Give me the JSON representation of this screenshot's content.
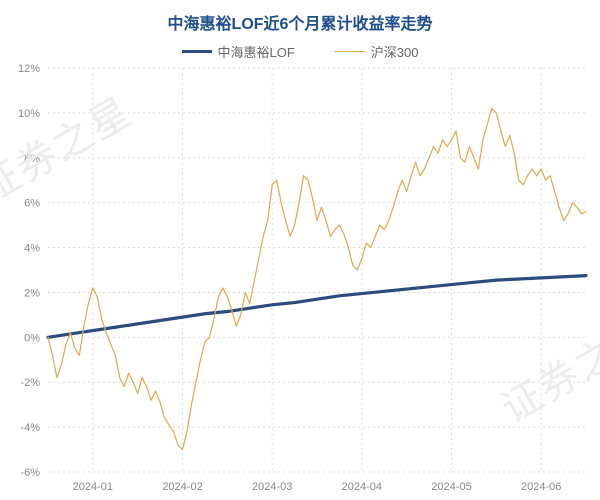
{
  "title": {
    "text": "中海惠裕LOF近6个月累计收益率走势",
    "color": "#1f4e8c",
    "fontsize": 16
  },
  "legend": {
    "items": [
      {
        "label": "中海惠裕LOF",
        "color": "#2b4c7e",
        "width": 3
      },
      {
        "label": "沪深300",
        "color": "#e0a94f",
        "width": 1
      }
    ],
    "fontsize": 13,
    "text_color": "#666666"
  },
  "watermark": {
    "text": "证券之星",
    "color": "#ececec",
    "fontsize": 40
  },
  "chart": {
    "type": "line",
    "background_color": "#ffffff",
    "grid_color": "#dddddd",
    "grid_dash": "2,3",
    "axis_font_color": "#888888",
    "axis_fontsize": 11,
    "y": {
      "min": -6,
      "max": 12,
      "step": 2,
      "format_suffix": "%",
      "ticks": [
        -6,
        -4,
        -2,
        0,
        2,
        4,
        6,
        8,
        10,
        12
      ]
    },
    "x": {
      "min": 0,
      "max": 120,
      "ticks": [
        {
          "x": 10,
          "label": "2024-01"
        },
        {
          "x": 30,
          "label": "2024-02"
        },
        {
          "x": 50,
          "label": "2024-03"
        },
        {
          "x": 70,
          "label": "2024-04"
        },
        {
          "x": 90,
          "label": "2024-05"
        },
        {
          "x": 110,
          "label": "2024-06"
        }
      ]
    },
    "series": [
      {
        "name": "中海惠裕LOF",
        "color": "#2b4c7e",
        "width": 3.2,
        "points": [
          [
            0,
            0.0
          ],
          [
            5,
            0.15
          ],
          [
            10,
            0.3
          ],
          [
            15,
            0.45
          ],
          [
            20,
            0.6
          ],
          [
            25,
            0.75
          ],
          [
            30,
            0.9
          ],
          [
            35,
            1.05
          ],
          [
            40,
            1.15
          ],
          [
            45,
            1.3
          ],
          [
            50,
            1.45
          ],
          [
            55,
            1.55
          ],
          [
            60,
            1.7
          ],
          [
            65,
            1.85
          ],
          [
            70,
            1.95
          ],
          [
            75,
            2.05
          ],
          [
            80,
            2.15
          ],
          [
            85,
            2.25
          ],
          [
            90,
            2.35
          ],
          [
            95,
            2.45
          ],
          [
            100,
            2.55
          ],
          [
            105,
            2.6
          ],
          [
            110,
            2.65
          ],
          [
            115,
            2.7
          ],
          [
            120,
            2.75
          ]
        ]
      },
      {
        "name": "沪深300",
        "color": "#e0a94f",
        "width": 1.2,
        "points": [
          [
            0,
            0.0
          ],
          [
            1,
            -0.8
          ],
          [
            2,
            -1.8
          ],
          [
            3,
            -1.2
          ],
          [
            4,
            -0.3
          ],
          [
            5,
            0.2
          ],
          [
            6,
            -0.5
          ],
          [
            7,
            -0.8
          ],
          [
            8,
            0.5
          ],
          [
            9,
            1.5
          ],
          [
            10,
            2.2
          ],
          [
            11,
            1.8
          ],
          [
            12,
            0.8
          ],
          [
            13,
            0.2
          ],
          [
            14,
            -0.3
          ],
          [
            15,
            -0.8
          ],
          [
            16,
            -1.8
          ],
          [
            17,
            -2.2
          ],
          [
            18,
            -1.6
          ],
          [
            19,
            -2.0
          ],
          [
            20,
            -2.5
          ],
          [
            21,
            -1.8
          ],
          [
            22,
            -2.2
          ],
          [
            23,
            -2.8
          ],
          [
            24,
            -2.4
          ],
          [
            25,
            -2.9
          ],
          [
            26,
            -3.6
          ],
          [
            27,
            -3.9
          ],
          [
            28,
            -4.2
          ],
          [
            29,
            -4.8
          ],
          [
            30,
            -5.0
          ],
          [
            31,
            -4.2
          ],
          [
            32,
            -3.0
          ],
          [
            33,
            -2.0
          ],
          [
            34,
            -1.0
          ],
          [
            35,
            -0.2
          ],
          [
            36,
            0.0
          ],
          [
            37,
            0.8
          ],
          [
            38,
            1.8
          ],
          [
            39,
            2.2
          ],
          [
            40,
            1.8
          ],
          [
            41,
            1.2
          ],
          [
            42,
            0.5
          ],
          [
            43,
            1.0
          ],
          [
            44,
            2.0
          ],
          [
            45,
            1.5
          ],
          [
            46,
            2.5
          ],
          [
            47,
            3.5
          ],
          [
            48,
            4.5
          ],
          [
            49,
            5.2
          ],
          [
            50,
            6.8
          ],
          [
            51,
            7.0
          ],
          [
            52,
            6.0
          ],
          [
            53,
            5.2
          ],
          [
            54,
            4.5
          ],
          [
            55,
            5.0
          ],
          [
            56,
            6.0
          ],
          [
            57,
            7.2
          ],
          [
            58,
            7.0
          ],
          [
            59,
            6.2
          ],
          [
            60,
            5.2
          ],
          [
            61,
            5.8
          ],
          [
            62,
            5.2
          ],
          [
            63,
            4.5
          ],
          [
            64,
            4.8
          ],
          [
            65,
            5.0
          ],
          [
            66,
            4.6
          ],
          [
            67,
            4.0
          ],
          [
            68,
            3.2
          ],
          [
            69,
            3.0
          ],
          [
            70,
            3.5
          ],
          [
            71,
            4.2
          ],
          [
            72,
            4.0
          ],
          [
            73,
            4.5
          ],
          [
            74,
            5.0
          ],
          [
            75,
            4.8
          ],
          [
            76,
            5.2
          ],
          [
            77,
            5.8
          ],
          [
            78,
            6.5
          ],
          [
            79,
            7.0
          ],
          [
            80,
            6.5
          ],
          [
            81,
            7.2
          ],
          [
            82,
            7.8
          ],
          [
            83,
            7.2
          ],
          [
            84,
            7.5
          ],
          [
            85,
            8.0
          ],
          [
            86,
            8.5
          ],
          [
            87,
            8.2
          ],
          [
            88,
            8.8
          ],
          [
            89,
            8.5
          ],
          [
            90,
            8.8
          ],
          [
            91,
            9.2
          ],
          [
            92,
            8.0
          ],
          [
            93,
            7.8
          ],
          [
            94,
            8.5
          ],
          [
            95,
            8.0
          ],
          [
            96,
            7.5
          ],
          [
            97,
            8.8
          ],
          [
            98,
            9.5
          ],
          [
            99,
            10.2
          ],
          [
            100,
            10.0
          ],
          [
            101,
            9.2
          ],
          [
            102,
            8.5
          ],
          [
            103,
            9.0
          ],
          [
            104,
            8.2
          ],
          [
            105,
            7.0
          ],
          [
            106,
            6.8
          ],
          [
            107,
            7.2
          ],
          [
            108,
            7.5
          ],
          [
            109,
            7.2
          ],
          [
            110,
            7.5
          ],
          [
            111,
            7.0
          ],
          [
            112,
            7.2
          ],
          [
            113,
            6.5
          ],
          [
            114,
            5.8
          ],
          [
            115,
            5.2
          ],
          [
            116,
            5.5
          ],
          [
            117,
            6.0
          ],
          [
            118,
            5.8
          ],
          [
            119,
            5.5
          ],
          [
            120,
            5.6
          ]
        ]
      }
    ]
  }
}
